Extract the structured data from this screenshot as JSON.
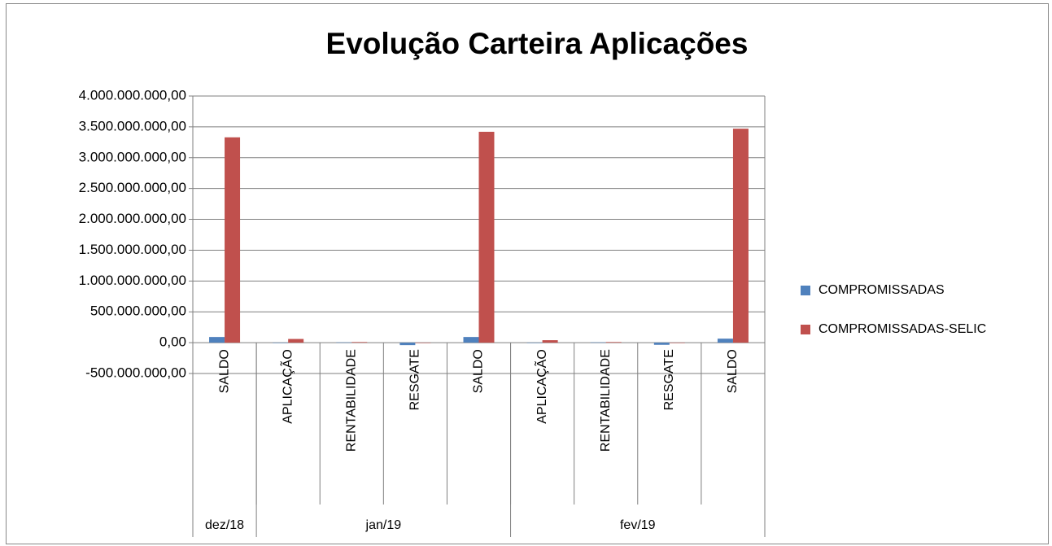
{
  "chart_data": {
    "type": "bar",
    "title": "Evolução Carteira Aplicações",
    "categories": [
      "SALDO",
      "APLICAÇÃO",
      "RENTABILIDADE",
      "RESGATE",
      "SALDO",
      "APLICAÇÃO",
      "RENTABILIDADE",
      "RESGATE",
      "SALDO"
    ],
    "category_groups": [
      {
        "label": "dez/18",
        "size": 1
      },
      {
        "label": "jan/19",
        "size": 4
      },
      {
        "label": "fev/19",
        "size": 4
      }
    ],
    "series": [
      {
        "name": "COMPROMISSADAS",
        "color": "#4f81bd",
        "values": [
          92000000,
          0,
          5000000,
          -40000000,
          92000000,
          0,
          5000000,
          -35000000,
          65000000
        ]
      },
      {
        "name": "COMPROMISSADAS-SELIC",
        "color": "#c0504d",
        "values": [
          3330000000,
          60000000,
          10000000,
          0,
          3420000000,
          40000000,
          10000000,
          0,
          3470000000
        ]
      }
    ],
    "ylim": [
      -500000000,
      4000000000
    ],
    "yticks": [
      {
        "value": -500000000,
        "label": "-500.000.000,00"
      },
      {
        "value": 0,
        "label": "0,00"
      },
      {
        "value": 500000000,
        "label": "500.000.000,00"
      },
      {
        "value": 1000000000,
        "label": "1.000.000.000,00"
      },
      {
        "value": 1500000000,
        "label": "1.500.000.000,00"
      },
      {
        "value": 2000000000,
        "label": "2.000.000.000,00"
      },
      {
        "value": 2500000000,
        "label": "2.500.000.000,00"
      },
      {
        "value": 3000000000,
        "label": "3.000.000.000,00"
      },
      {
        "value": 3500000000,
        "label": "3.500.000.000,00"
      },
      {
        "value": 4000000000,
        "label": "4.000.000.000,00"
      }
    ],
    "grid": true,
    "legend": "right"
  }
}
